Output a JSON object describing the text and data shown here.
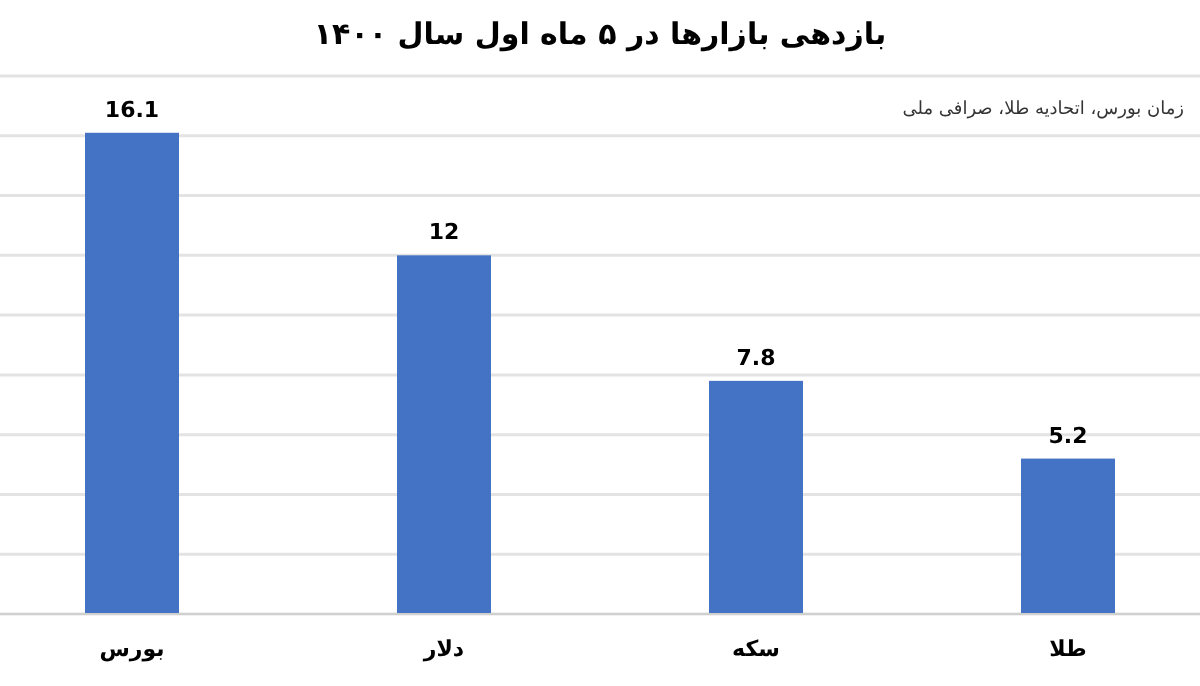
{
  "chart_data": {
    "type": "bar",
    "title": "بازدهی بازارها در ۵ ماه اول سال ۱۴۰۰",
    "annotations": [
      "زمان بورس، اتحادیه طلا، صرافی ملی"
    ],
    "categories": [
      "بورس",
      "دلار",
      "سکه",
      "طلا"
    ],
    "values": [
      16.1,
      12,
      7.8,
      5.2
    ],
    "color": "#4472c4",
    "ylim": [
      0,
      18
    ],
    "yticks": [
      {
        "value": 0,
        "label": null
      },
      {
        "value": 2,
        "label": null
      },
      {
        "value": 4,
        "label": null
      },
      {
        "value": 6,
        "label": null
      },
      {
        "value": 8,
        "label": null
      },
      {
        "value": 10,
        "label": null
      },
      {
        "value": 12,
        "label": null
      },
      {
        "value": 14,
        "label": null
      },
      {
        "value": 16,
        "label": null
      },
      {
        "value": 18,
        "label": null
      }
    ],
    "grid": "y",
    "data_labels": true,
    "tick_labels": "x"
  }
}
